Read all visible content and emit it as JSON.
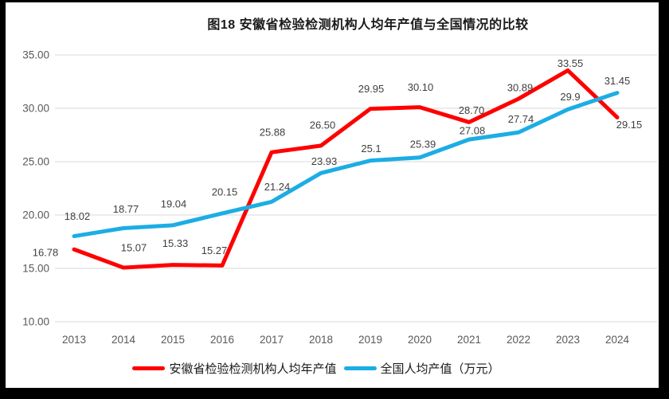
{
  "frame": {
    "background": "#000000"
  },
  "chart_data": {
    "type": "line",
    "title": "图18 安徽省检验检测机构人均年产值与全国情况的比较",
    "categories": [
      "2013",
      "2014",
      "2015",
      "2016",
      "2017",
      "2018",
      "2019",
      "2020",
      "2021",
      "2022",
      "2023",
      "2024"
    ],
    "ylim": [
      10,
      35
    ],
    "yticks": [
      "35.00",
      "30.00",
      "25.00",
      "20.00",
      "15.00",
      "10.00"
    ],
    "grid": true,
    "legend_position": "bottom",
    "xlabel": "",
    "ylabel": "",
    "series": [
      {
        "name": "安徽省检验检测机构人均年产值",
        "color": "#FF0000",
        "values": [
          16.78,
          15.07,
          15.33,
          15.27,
          25.88,
          26.5,
          29.95,
          30.1,
          28.7,
          30.89,
          33.55,
          29.15
        ],
        "point_labels": [
          "16.78",
          "15.07",
          "15.33",
          "15.27",
          "25.88",
          "26.50",
          "29.95",
          "30.10",
          "28.70",
          "30.89",
          "33.55",
          "29.15"
        ],
        "label_offsets": [
          [
            -36,
            4
          ],
          [
            13,
            -25
          ],
          [
            3,
            -27
          ],
          [
            -10,
            -19
          ],
          [
            1,
            -25
          ],
          [
            2,
            -26
          ],
          [
            1,
            -25
          ],
          [
            1,
            -25
          ],
          [
            3,
            -15
          ],
          [
            2,
            -14
          ],
          [
            3,
            -9
          ],
          [
            15,
            9
          ]
        ]
      },
      {
        "name": "全国人均产值（万元）",
        "color": "#1CADE4",
        "values": [
          18.02,
          18.77,
          19.04,
          20.15,
          21.24,
          23.93,
          25.1,
          25.39,
          27.08,
          27.74,
          29.9,
          31.45
        ],
        "point_labels": [
          "18.02",
          "18.77",
          "19.04",
          "20.15",
          "21.24",
          "23.93",
          "25.1",
          "25.39",
          "27.08",
          "27.74",
          "29.9",
          "31.45"
        ],
        "label_offsets": [
          [
            4,
            -25
          ],
          [
            3,
            -24
          ],
          [
            1,
            -27
          ],
          [
            3,
            -27
          ],
          [
            7,
            -19
          ],
          [
            4,
            -15
          ],
          [
            1,
            -15
          ],
          [
            4,
            -17
          ],
          [
            4,
            -11
          ],
          [
            3,
            -17
          ],
          [
            3,
            -16
          ],
          [
            0,
            -15
          ]
        ]
      }
    ],
    "colors": {
      "grid": "#D9D9D9",
      "axis_text": "#595959",
      "data_label": "#3F3F3F",
      "plot_bg": "#FFFFFF"
    }
  }
}
